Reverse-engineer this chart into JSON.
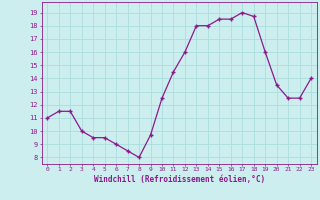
{
  "x": [
    0,
    1,
    2,
    3,
    4,
    5,
    6,
    7,
    8,
    9,
    10,
    11,
    12,
    13,
    14,
    15,
    16,
    17,
    18,
    19,
    20,
    21,
    22,
    23
  ],
  "y": [
    11,
    11.5,
    11.5,
    10,
    9.5,
    9.5,
    9,
    8.5,
    8,
    9.7,
    12.5,
    14.5,
    16,
    18,
    18,
    18.5,
    18.5,
    19,
    18.7,
    16,
    13.5,
    12.5,
    12.5,
    14
  ],
  "line_color": "#8b1a8b",
  "marker_color": "#8b1a8b",
  "bg_color": "#cceeee",
  "grid_color": "#aadddd",
  "xlabel": "Windchill (Refroidissement éolien,°C)",
  "xlabel_color": "#8b1a8b",
  "ytick_labels": [
    "8",
    "9",
    "10",
    "11",
    "12",
    "13",
    "14",
    "15",
    "16",
    "17",
    "18",
    "19"
  ],
  "ylim": [
    7.5,
    19.8
  ],
  "xlim": [
    -0.5,
    23.5
  ],
  "xtick_labels": [
    "0",
    "1",
    "2",
    "3",
    "4",
    "5",
    "6",
    "7",
    "8",
    "9",
    "10",
    "11",
    "12",
    "13",
    "14",
    "15",
    "16",
    "17",
    "18",
    "19",
    "20",
    "21",
    "22",
    "23"
  ],
  "tick_color": "#8b1a8b",
  "spine_color": "#8b1a8b"
}
